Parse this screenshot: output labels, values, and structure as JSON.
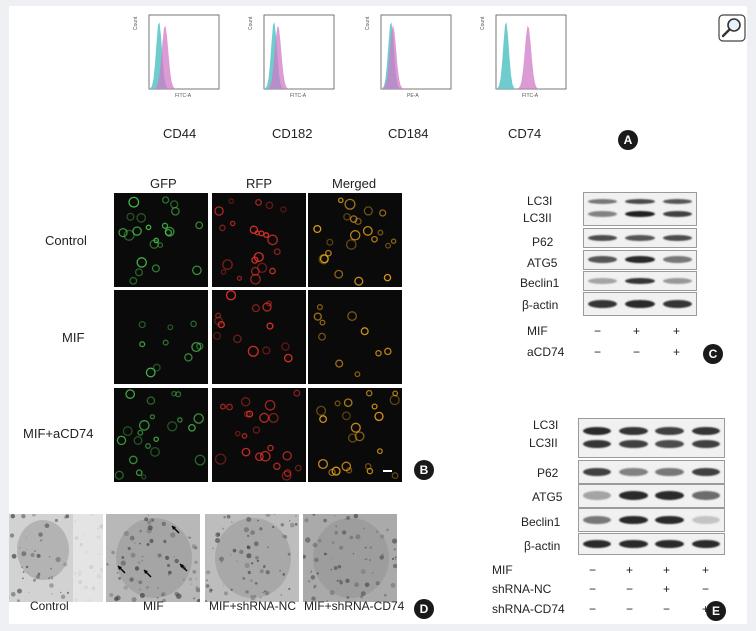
{
  "panel_a": {
    "badge": "A",
    "markers": [
      "CD44",
      "CD182",
      "CD184",
      "CD74"
    ],
    "x_axis_labels": [
      "FITC-A",
      "FITC-A",
      "PE-A",
      "FITC-A"
    ],
    "y_axis_label": "Count",
    "colors": {
      "control": "#5fc7c9",
      "treated": "#cf7ac6"
    }
  },
  "panel_b": {
    "badge": "B",
    "columns": [
      "GFP",
      "RFP",
      "Merged"
    ],
    "rows": [
      "Control",
      "MIF",
      "MIF+aCD74"
    ]
  },
  "panel_c": {
    "badge": "C",
    "proteins": [
      "LC3I",
      "LC3II",
      "P62",
      "ATG5",
      "Beclin1",
      "β-actin"
    ],
    "conditions": [
      {
        "label": "MIF",
        "signs": [
          "−",
          "+",
          "+"
        ]
      },
      {
        "label": "aCD74",
        "signs": [
          "−",
          "−",
          "+"
        ]
      }
    ]
  },
  "panel_d": {
    "badge": "D",
    "labels": [
      "Control",
      "MIF",
      "MIF+shRNA-NC",
      "MIF+shRNA-CD74"
    ]
  },
  "panel_e": {
    "badge": "E",
    "proteins": [
      "LC3I",
      "LC3II",
      "P62",
      "ATG5",
      "Beclin1",
      "β-actin"
    ],
    "conditions": [
      {
        "label": "MIF",
        "signs": [
          "−",
          "+",
          "+",
          "+"
        ]
      },
      {
        "label": "shRNA-NC",
        "signs": [
          "−",
          "−",
          "+",
          "−"
        ]
      },
      {
        "label": "shRNA-CD74",
        "signs": [
          "−",
          "−",
          "−",
          "+"
        ]
      }
    ]
  },
  "zoom_icon": "magnifier-icon"
}
